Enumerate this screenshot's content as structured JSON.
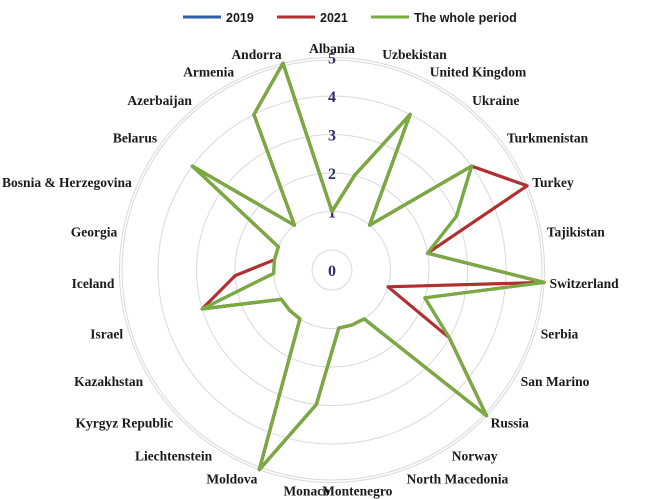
{
  "chart_data": {
    "type": "radar",
    "categories": [
      "Albania",
      "Uzbekistan",
      "United Kingdom",
      "Ukraine",
      "Turkmenistan",
      "Turkey",
      "Tajikistan",
      "Switzerland",
      "Serbia",
      "San Marino",
      "Russia",
      "Norway",
      "North Macedonia",
      "Montenegro",
      "Monaco",
      "Moldova",
      "Liechtenstein",
      "Kyrgyz Republic",
      "Kazakhstan",
      "Israel",
      "Iceland",
      "Georgia",
      "Bosnia & Herzegovina",
      "Belarus",
      "Azerbaijan",
      "Armenia",
      "Andorra"
    ],
    "ticks": [
      "0",
      "1",
      "2",
      "3",
      "4",
      "5"
    ],
    "rlim": [
      0,
      5
    ],
    "legend_position": "top",
    "series": [
      {
        "name": "2019",
        "color": "#2e5fa8",
        "values": [
          1,
          2,
          4,
          1,
          4,
          3,
          2,
          5,
          2,
          3,
          5,
          1,
          1,
          1,
          3,
          5,
          1,
          1,
          1,
          3,
          1,
          1,
          1,
          4,
          1,
          4,
          5
        ]
      },
      {
        "name": "2021",
        "color": "#b03030",
        "values": [
          1,
          2,
          4,
          1,
          4,
          5,
          2,
          5,
          1,
          3,
          5,
          1,
          1,
          1,
          3,
          5,
          1,
          1,
          1,
          3,
          2,
          1,
          1,
          4,
          1,
          4,
          5
        ]
      },
      {
        "name": "The whole period",
        "color": "#79ab3e",
        "values": [
          1,
          2,
          4,
          1,
          4,
          3,
          2,
          5,
          2,
          3,
          5,
          1,
          1,
          1,
          3,
          5,
          1,
          1,
          1,
          3,
          1,
          1,
          1,
          4,
          1,
          4,
          5
        ]
      }
    ]
  }
}
